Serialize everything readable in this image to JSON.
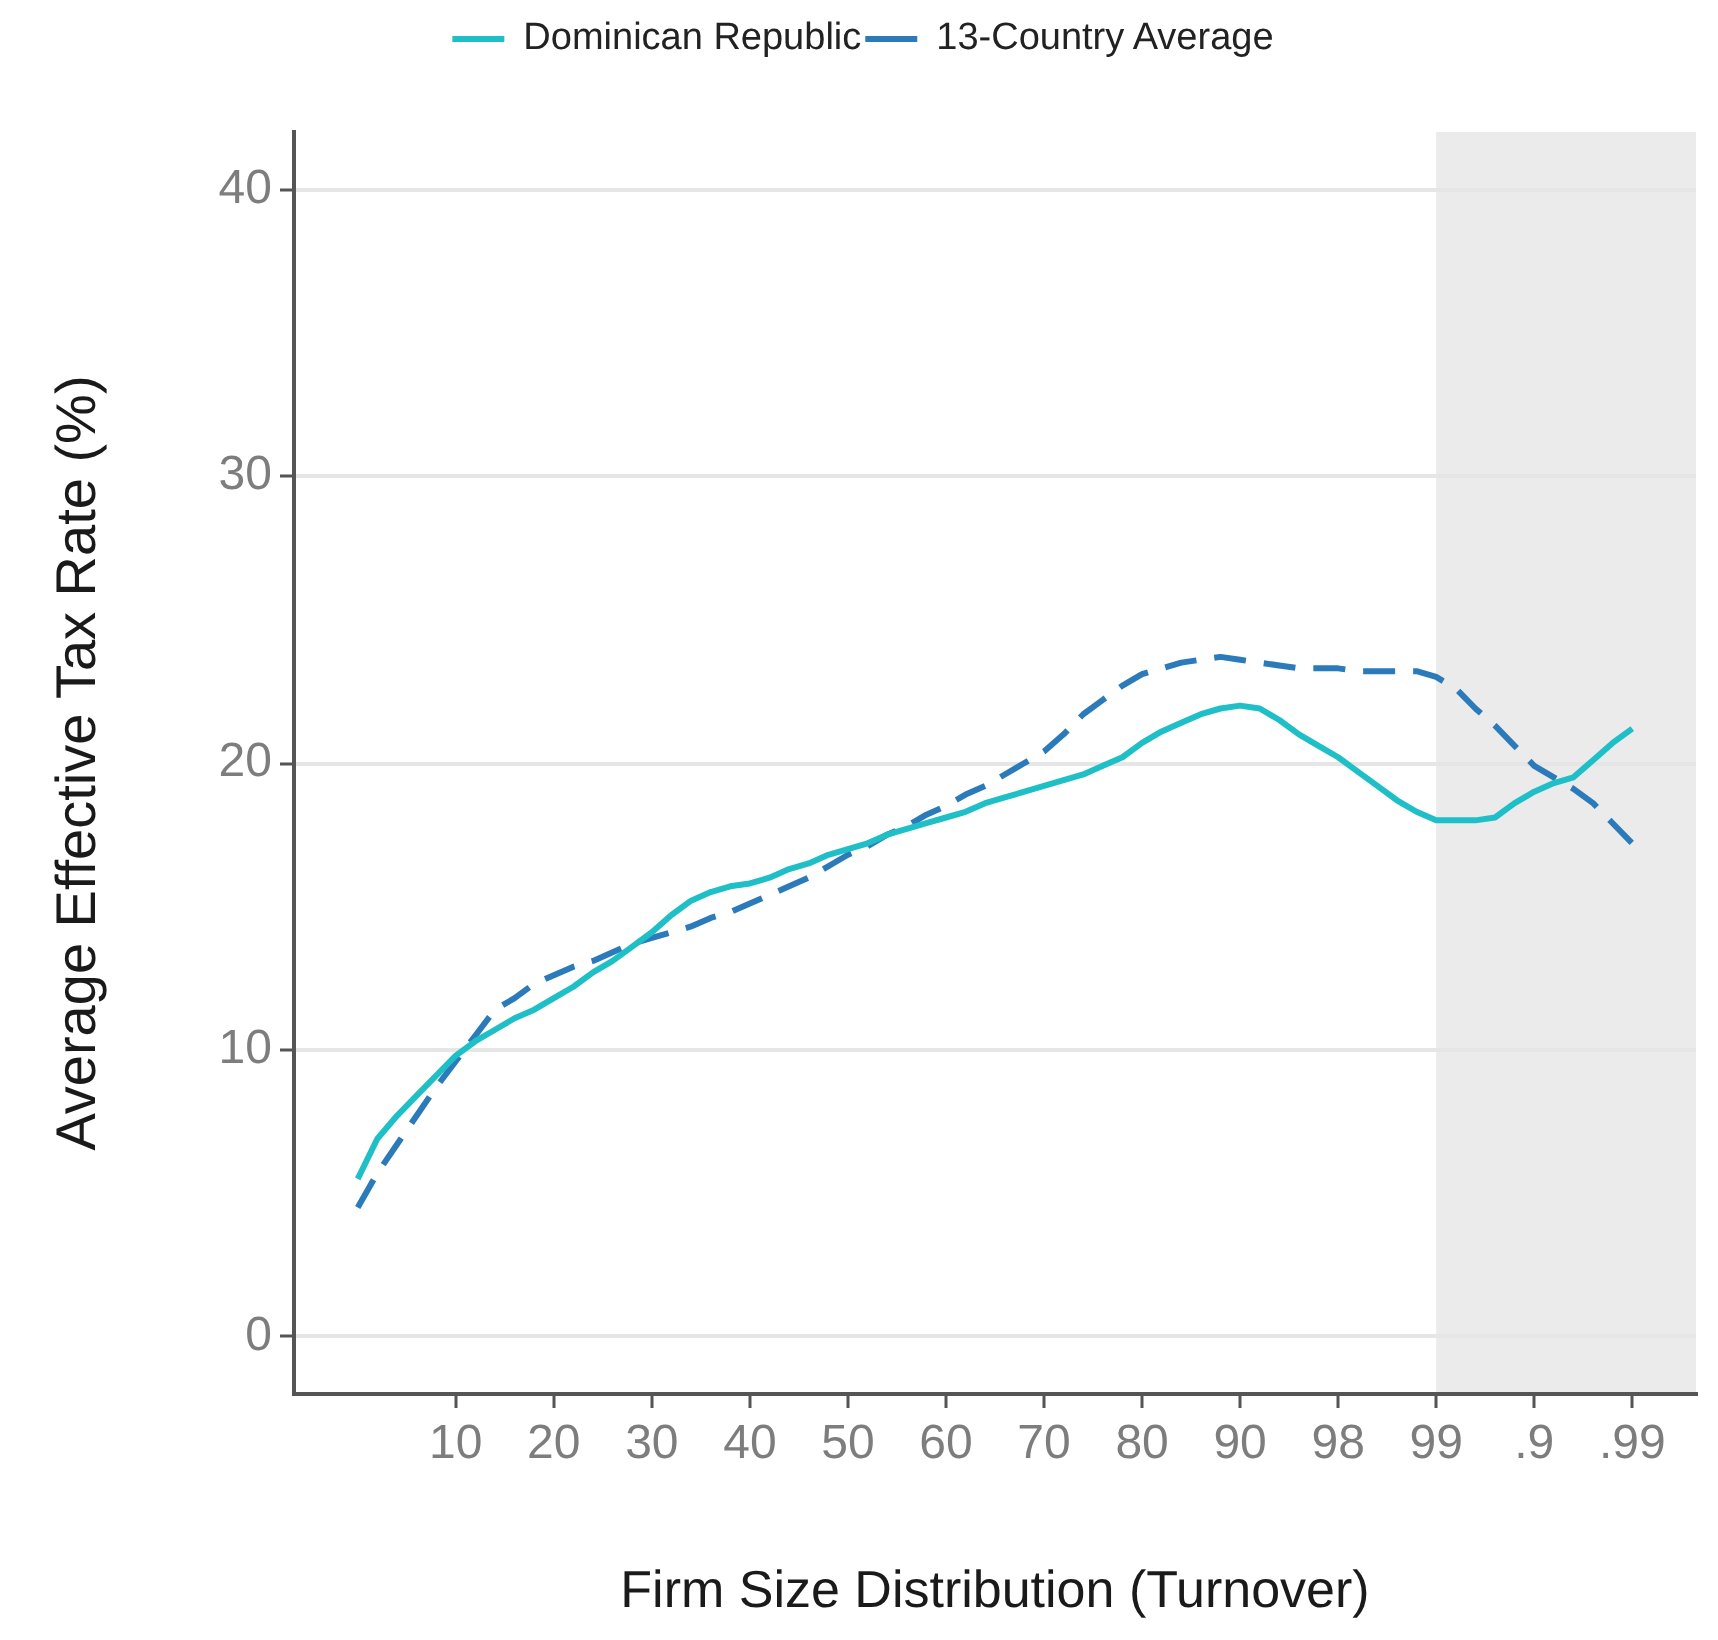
{
  "chart_data": {
    "type": "line",
    "xlabel": "Firm Size Distribution (Turnover)",
    "ylabel": "Average Effective Tax Rate (%)",
    "categories": [
      null,
      null,
      null,
      null,
      null,
      "10",
      null,
      null,
      null,
      null,
      "20",
      null,
      null,
      null,
      null,
      "30",
      null,
      null,
      null,
      null,
      "40",
      null,
      null,
      null,
      null,
      "50",
      null,
      null,
      null,
      null,
      "60",
      null,
      null,
      null,
      null,
      "70",
      null,
      null,
      null,
      null,
      "80",
      null,
      null,
      null,
      null,
      "90",
      null,
      null,
      null,
      null,
      "98",
      null,
      null,
      null,
      null,
      "99",
      null,
      null,
      null,
      null,
      ".9",
      null,
      null,
      null,
      null,
      ".99"
    ],
    "ylim": [
      -2,
      42
    ],
    "yticks": [
      0,
      10,
      20,
      30,
      40
    ],
    "grid": "y",
    "legend": "top",
    "bands": [
      {
        "axis": "x",
        "from": "99",
        "to": ".99",
        "color": "#ebebeb"
      }
    ],
    "series": [
      {
        "name": "Dominican Republic",
        "color": "#1fbfc8",
        "line_style": "solid",
        "values": [
          5.5,
          6.9,
          7.7,
          8.4,
          9.1,
          9.8,
          10.3,
          10.7,
          11.1,
          11.4,
          11.8,
          12.2,
          12.7,
          13.1,
          13.6,
          14.1,
          14.7,
          15.2,
          15.5,
          15.7,
          15.8,
          16.0,
          16.3,
          16.5,
          16.8,
          17.0,
          17.2,
          17.5,
          17.7,
          17.9,
          18.1,
          18.3,
          18.6,
          18.8,
          19.0,
          19.2,
          19.4,
          19.6,
          19.9,
          20.2,
          20.7,
          21.1,
          21.4,
          21.7,
          21.9,
          22.0,
          21.9,
          21.5,
          21.0,
          20.6,
          20.2,
          19.7,
          19.2,
          18.7,
          18.3,
          18.0,
          18.0,
          18.0,
          18.1,
          18.6,
          19.0,
          19.3,
          19.5,
          20.1,
          20.7,
          21.2
        ]
      },
      {
        "name": "13-Country Average",
        "color": "#2b7bba",
        "line_style": "dashed",
        "values": [
          4.5,
          5.7,
          6.7,
          7.7,
          8.7,
          9.6,
          10.5,
          11.4,
          11.8,
          12.3,
          12.6,
          12.9,
          13.1,
          13.4,
          13.7,
          13.9,
          14.1,
          14.3,
          14.6,
          14.8,
          15.1,
          15.4,
          15.7,
          16.0,
          16.4,
          16.8,
          17.1,
          17.5,
          17.8,
          18.2,
          18.5,
          18.9,
          19.2,
          19.6,
          20.0,
          20.4,
          21.0,
          21.7,
          22.2,
          22.7,
          23.1,
          23.3,
          23.5,
          23.6,
          23.7,
          23.6,
          23.5,
          23.4,
          23.3,
          23.3,
          23.3,
          23.2,
          23.2,
          23.2,
          23.2,
          23.0,
          22.6,
          21.9,
          21.3,
          20.6,
          19.9,
          19.5,
          19.1,
          18.6,
          17.9,
          17.2
        ]
      }
    ]
  }
}
